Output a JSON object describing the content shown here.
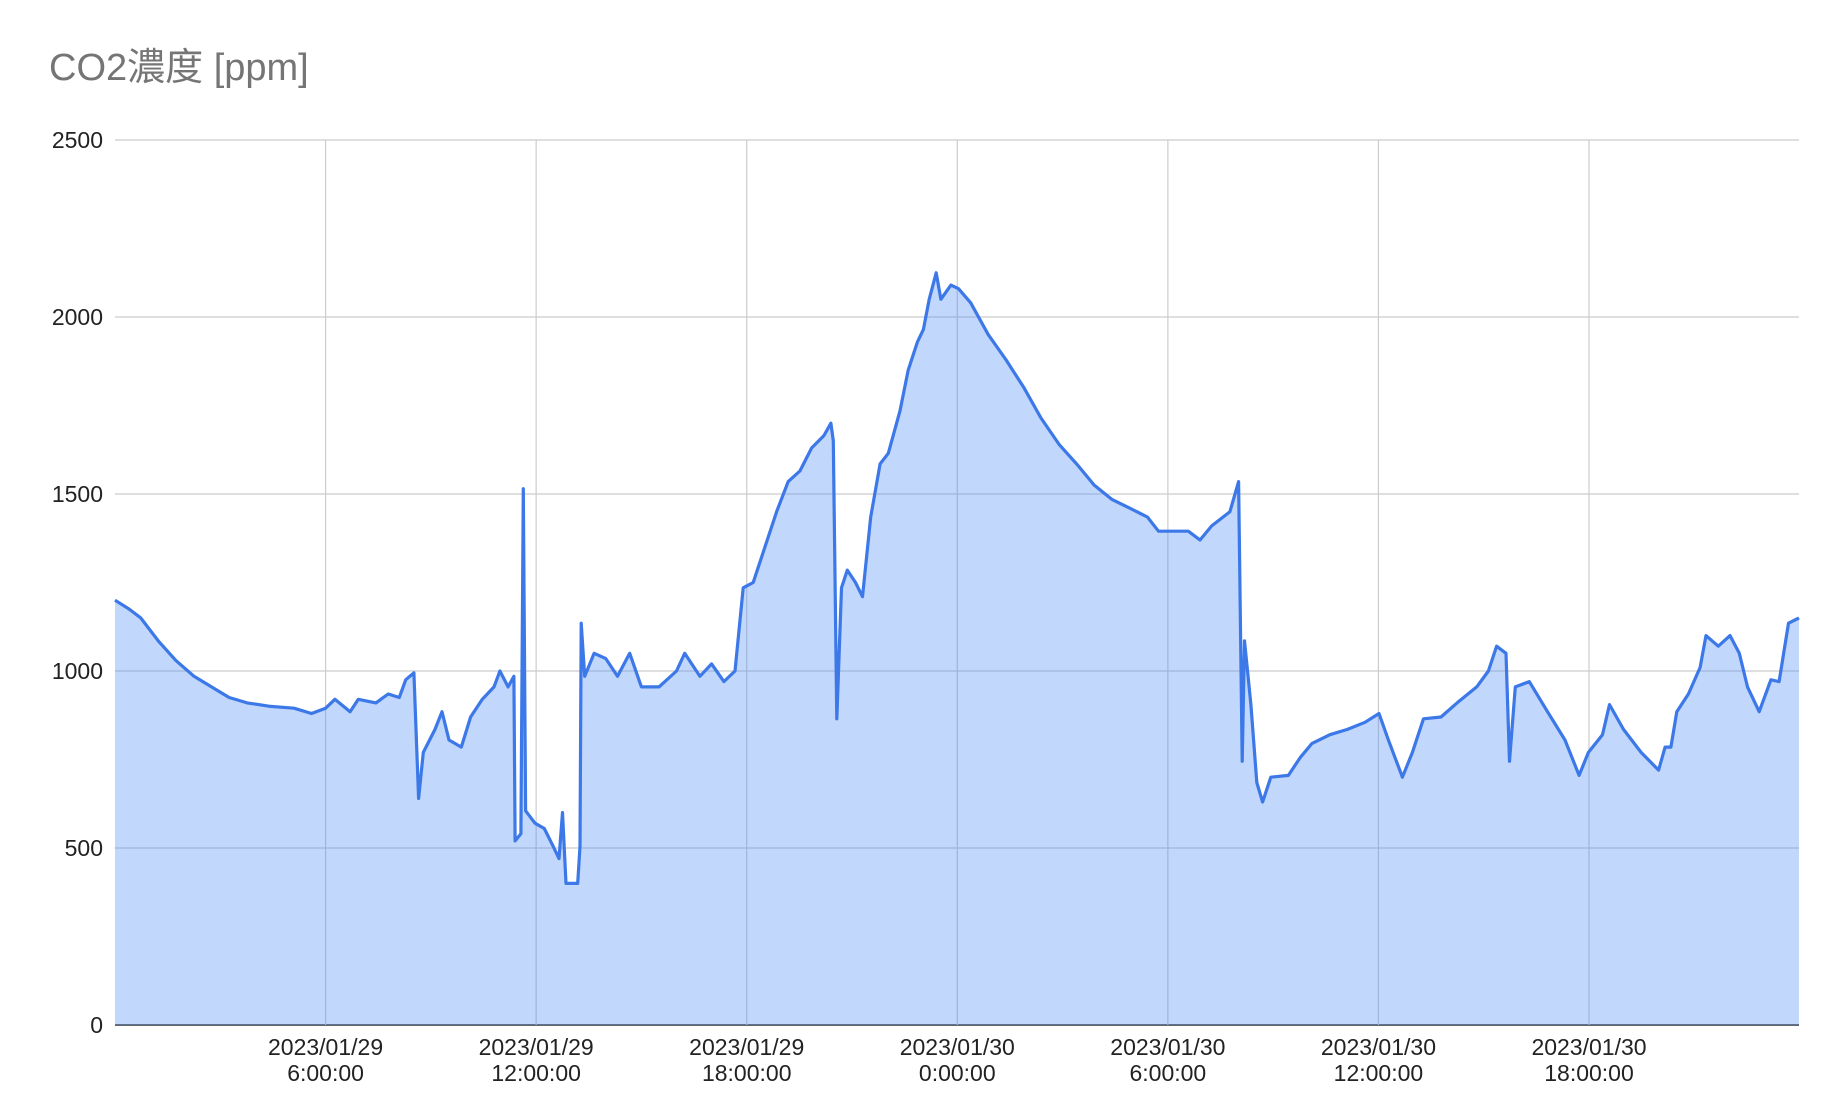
{
  "chart_data": {
    "type": "area",
    "title": "CO2濃度 [ppm]",
    "color": "#3c78e8",
    "fill": "rgba(66,133,244,0.33)",
    "grid": true,
    "xlim": [
      "2023-01-29 00:00",
      "2023-01-30 23:59"
    ],
    "xticks": [
      {
        "value": "2023-01-29 06:00",
        "label": "2023/01/29\n6:00:00"
      },
      {
        "value": "2023-01-29 12:00",
        "label": "2023/01/29\n12:00:00"
      },
      {
        "value": "2023-01-29 18:00",
        "label": "2023/01/29\n18:00:00"
      },
      {
        "value": "2023-01-30 00:00",
        "label": "2023/01/30\n0:00:00"
      },
      {
        "value": "2023-01-30 06:00",
        "label": "2023/01/30\n6:00:00"
      },
      {
        "value": "2023-01-30 12:00",
        "label": "2023/01/30\n12:00:00"
      },
      {
        "value": "2023-01-30 18:00",
        "label": "2023/01/30\n18:00:00"
      }
    ],
    "ylim": [
      0,
      2500
    ],
    "yticks": [
      0,
      500,
      1000,
      1500,
      2000,
      2500
    ],
    "x": [
      "2023-01-29 00:00",
      "2023-01-29 00:24",
      "2023-01-29 00:44",
      "2023-01-29 01:14",
      "2023-01-29 01:44",
      "2023-01-29 02:15",
      "2023-01-29 02:45",
      "2023-01-29 03:15",
      "2023-01-29 03:46",
      "2023-01-29 04:26",
      "2023-01-29 05:06",
      "2023-01-29 05:36",
      "2023-01-29 06:00",
      "2023-01-29 06:16",
      "2023-01-29 06:42",
      "2023-01-29 06:56",
      "2023-01-29 07:26",
      "2023-01-29 07:47",
      "2023-01-29 08:06",
      "2023-01-29 08:17",
      "2023-01-29 08:31",
      "2023-01-29 08:39",
      "2023-01-29 08:47",
      "2023-01-29 09:07",
      "2023-01-29 09:19",
      "2023-01-29 09:31",
      "2023-01-29 09:52",
      "2023-01-29 10:08",
      "2023-01-29 10:28",
      "2023-01-29 10:48",
      "2023-01-29 10:58",
      "2023-01-29 11:12",
      "2023-01-29 11:22",
      "2023-01-29 11:24",
      "2023-01-29 11:34",
      "2023-01-29 11:38",
      "2023-01-29 11:42",
      "2023-01-29 11:58",
      "2023-01-29 12:14",
      "2023-01-29 12:29",
      "2023-01-29 12:39",
      "2023-01-29 12:45",
      "2023-01-29 12:51",
      "2023-01-29 13:11",
      "2023-01-29 13:15",
      "2023-01-29 13:17",
      "2023-01-29 13:23",
      "2023-01-29 13:39",
      "2023-01-29 13:59",
      "2023-01-29 14:19",
      "2023-01-29 14:40",
      "2023-01-29 15:00",
      "2023-01-29 15:30",
      "2023-01-29 16:00",
      "2023-01-29 16:14",
      "2023-01-29 16:40",
      "2023-01-29 17:00",
      "2023-01-29 17:21",
      "2023-01-29 17:40",
      "2023-01-29 17:54",
      "2023-01-29 18:11",
      "2023-01-29 18:31",
      "2023-01-29 18:51",
      "2023-01-29 19:11",
      "2023-01-29 19:31",
      "2023-01-29 19:51",
      "2023-01-29 20:12",
      "2023-01-29 20:24",
      "2023-01-29 20:28",
      "2023-01-29 20:34",
      "2023-01-29 20:42",
      "2023-01-29 20:52",
      "2023-01-29 21:06",
      "2023-01-29 21:18",
      "2023-01-29 21:32",
      "2023-01-29 21:48",
      "2023-01-29 22:02",
      "2023-01-29 22:22",
      "2023-01-29 22:36",
      "2023-01-29 22:52",
      "2023-01-29 23:02",
      "2023-01-29 23:12",
      "2023-01-29 23:24",
      "2023-01-29 23:32",
      "2023-01-29 23:49",
      "2023-01-30 00:02",
      "2023-01-30 00:23",
      "2023-01-30 00:53",
      "2023-01-30 01:23",
      "2023-01-30 01:54",
      "2023-01-30 02:23",
      "2023-01-30 02:54",
      "2023-01-30 03:24",
      "2023-01-30 03:54",
      "2023-01-30 04:24",
      "2023-01-30 04:55",
      "2023-01-30 05:25",
      "2023-01-30 05:44",
      "2023-01-30 06:15",
      "2023-01-30 06:35",
      "2023-01-30 06:55",
      "2023-01-30 07:15",
      "2023-01-30 07:46",
      "2023-01-30 08:01",
      "2023-01-30 08:07",
      "2023-01-30 08:11",
      "2023-01-30 08:22",
      "2023-01-30 08:32",
      "2023-01-30 08:42",
      "2023-01-30 08:56",
      "2023-01-30 09:26",
      "2023-01-30 09:46",
      "2023-01-30 10:06",
      "2023-01-30 10:37",
      "2023-01-30 11:07",
      "2023-01-30 11:37",
      "2023-01-30 12:01",
      "2023-01-30 12:17",
      "2023-01-30 12:41",
      "2023-01-30 12:58",
      "2023-01-30 13:17",
      "2023-01-30 13:47",
      "2023-01-30 14:18",
      "2023-01-30 14:48",
      "2023-01-30 15:08",
      "2023-01-30 15:22",
      "2023-01-30 15:38",
      "2023-01-30 15:44",
      "2023-01-30 15:54",
      "2023-01-30 16:18",
      "2023-01-30 16:49",
      "2023-01-30 17:19",
      "2023-01-30 17:43",
      "2023-01-30 17:59",
      "2023-01-30 18:23",
      "2023-01-30 18:35",
      "2023-01-30 18:59",
      "2023-01-30 19:29",
      "2023-01-30 19:59",
      "2023-01-30 20:10",
      "2023-01-30 20:20",
      "2023-01-30 20:30",
      "2023-01-30 20:50",
      "2023-01-30 21:10",
      "2023-01-30 21:20",
      "2023-01-30 21:41",
      "2023-01-30 22:01",
      "2023-01-30 22:17",
      "2023-01-30 22:31",
      "2023-01-30 22:51",
      "2023-01-30 23:11",
      "2023-01-30 23:25",
      "2023-01-30 23:41",
      "2023-01-30 23:59"
    ],
    "values": [
      1200,
      1175,
      1150,
      1085,
      1030,
      985,
      955,
      925,
      910,
      900,
      895,
      880,
      895,
      920,
      885,
      920,
      910,
      935,
      925,
      975,
      995,
      640,
      770,
      835,
      885,
      805,
      785,
      870,
      920,
      955,
      1000,
      955,
      985,
      520,
      540,
      1515,
      605,
      570,
      555,
      505,
      470,
      600,
      400,
      400,
      505,
      1135,
      985,
      1050,
      1035,
      985,
      1050,
      955,
      955,
      1000,
      1050,
      985,
      1020,
      970,
      1000,
      1235,
      1250,
      1350,
      1450,
      1535,
      1565,
      1630,
      1665,
      1700,
      1650,
      865,
      1235,
      1285,
      1250,
      1210,
      1435,
      1585,
      1615,
      1735,
      1850,
      1930,
      1965,
      2050,
      2125,
      2050,
      2090,
      2080,
      2040,
      1950,
      1880,
      1800,
      1715,
      1640,
      1585,
      1525,
      1485,
      1460,
      1435,
      1395,
      1395,
      1395,
      1370,
      1410,
      1450,
      1535,
      745,
      1085,
      905,
      685,
      630,
      700,
      705,
      755,
      795,
      820,
      835,
      855,
      880,
      805,
      700,
      770,
      865,
      870,
      915,
      955,
      1000,
      1070,
      1050,
      745,
      955,
      970,
      885,
      805,
      705,
      770,
      820,
      905,
      835,
      770,
      720,
      785,
      785,
      885,
      935,
      1010,
      1100,
      1070,
      1100,
      1050,
      955,
      885,
      975,
      970,
      1135,
      1150
    ]
  }
}
